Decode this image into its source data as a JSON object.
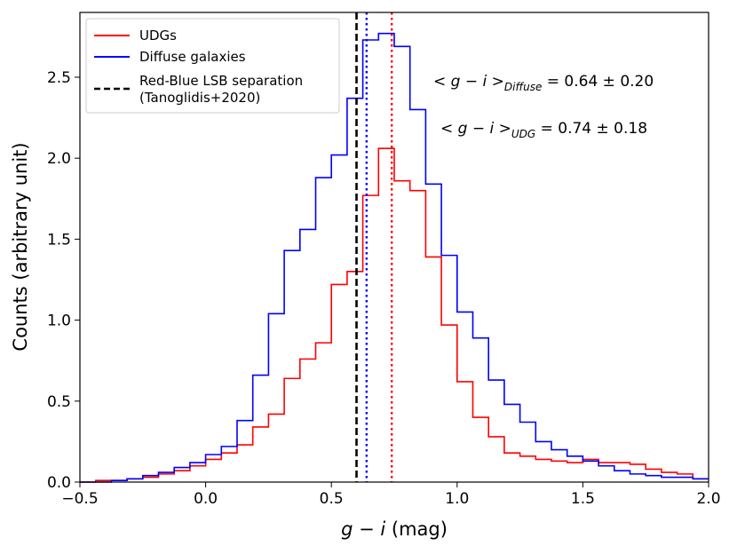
{
  "chart_data": {
    "type": "histogram",
    "title": "",
    "xlabel_var": "g − i",
    "xlabel_unit": " (mag)",
    "ylabel": "Counts (arbitrary unit)",
    "xlim": [
      -0.5,
      2.0
    ],
    "ylim": [
      0,
      2.9
    ],
    "xticks": [
      -0.5,
      0.0,
      0.5,
      1.0,
      1.5,
      2.0
    ],
    "xtick_labels": [
      "−0.5",
      "0.0",
      "0.5",
      "1.0",
      "1.5",
      "2.0"
    ],
    "yticks": [
      0.0,
      0.5,
      1.0,
      1.5,
      2.0,
      2.5
    ],
    "ytick_labels": [
      "0.0",
      "0.5",
      "1.0",
      "1.5",
      "2.0",
      "2.5"
    ],
    "bin_start": -0.5,
    "bin_width": 0.0625,
    "series": [
      {
        "name": "UDGs",
        "color": "#ff0000",
        "values": [
          0.0,
          0.01,
          0.01,
          0.02,
          0.03,
          0.05,
          0.07,
          0.1,
          0.14,
          0.18,
          0.23,
          0.34,
          0.42,
          0.64,
          0.76,
          0.86,
          1.22,
          1.3,
          1.77,
          2.06,
          1.86,
          1.8,
          1.39,
          0.97,
          0.62,
          0.4,
          0.28,
          0.18,
          0.16,
          0.14,
          0.13,
          0.12,
          0.14,
          0.12,
          0.12,
          0.11,
          0.08,
          0.06,
          0.05,
          0.02
        ]
      },
      {
        "name": "Diffuse galaxies",
        "color": "#0000ff",
        "values": [
          0.0,
          0.0,
          0.01,
          0.02,
          0.04,
          0.06,
          0.09,
          0.12,
          0.17,
          0.22,
          0.38,
          0.66,
          1.04,
          1.43,
          1.56,
          1.88,
          2.02,
          2.37,
          2.73,
          2.77,
          2.69,
          2.3,
          1.84,
          1.4,
          1.05,
          0.89,
          0.63,
          0.48,
          0.37,
          0.25,
          0.2,
          0.16,
          0.13,
          0.1,
          0.07,
          0.05,
          0.04,
          0.03,
          0.03,
          0.02
        ]
      }
    ],
    "vlines": [
      {
        "name": "Red-Blue LSB separation (Tanoglidis+2020)",
        "x": 0.6,
        "color": "#000000",
        "style": "dashed"
      },
      {
        "name": "mean Diffuse",
        "x": 0.64,
        "color": "#0000ff",
        "style": "dotted"
      },
      {
        "name": "mean UDG",
        "x": 0.74,
        "color": "#ff0000",
        "style": "dotted"
      }
    ],
    "legend": {
      "location": "upper-left",
      "entries": [
        {
          "label": "UDGs",
          "color": "#ff0000",
          "style": "solid"
        },
        {
          "label": "Diffuse galaxies",
          "color": "#0000ff",
          "style": "solid"
        },
        {
          "label": "Red-Blue LSB separation",
          "label2": "(Tanoglidis+2020)",
          "color": "#000000",
          "style": "dashed"
        }
      ]
    },
    "annotations": [
      {
        "lhs": "< g − i >",
        "sub": "Diffuse",
        "rhs": " = 0.64 ± 0.20"
      },
      {
        "lhs": "< g − i >",
        "sub": "UDG",
        "rhs": " = 0.74 ± 0.18"
      }
    ]
  }
}
